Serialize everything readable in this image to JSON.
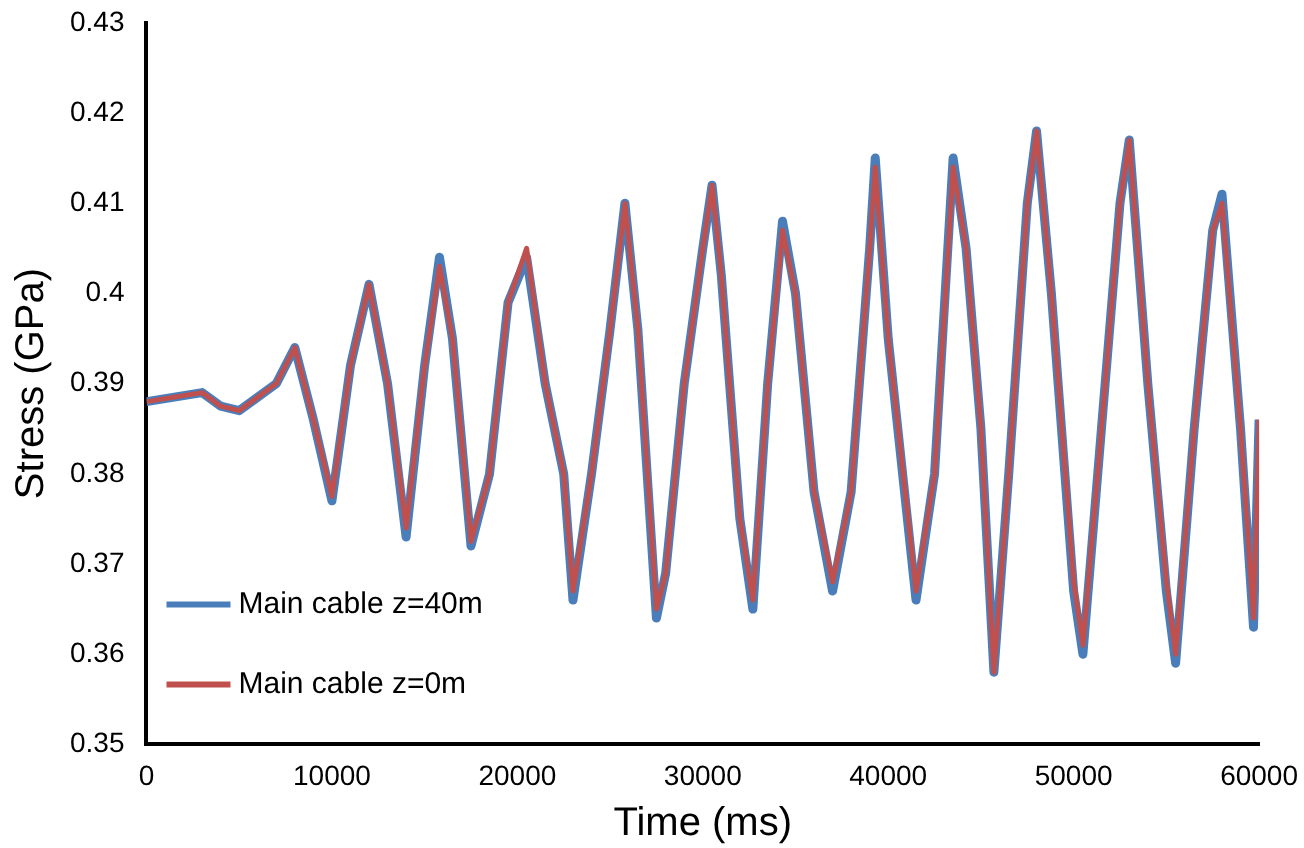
{
  "chart_data": {
    "type": "line",
    "xlabel": "Time (ms)",
    "ylabel": "Stress (GPa)",
    "xlim": [
      0,
      60000
    ],
    "ylim": [
      0.35,
      0.43
    ],
    "xticks": [
      0,
      10000,
      20000,
      30000,
      40000,
      50000,
      60000
    ],
    "yticks": [
      0.35,
      0.36,
      0.37,
      0.38,
      0.39,
      0.4,
      0.41,
      0.42,
      0.43
    ],
    "grid": false,
    "legend": "bottom left",
    "marker": "none",
    "line_style": "solid",
    "x": [
      0,
      3000,
      4000,
      5000,
      7000,
      8000,
      9000,
      10000,
      11000,
      12000,
      13000,
      14000,
      15000,
      15800,
      16500,
      17500,
      18500,
      19500,
      20500,
      21500,
      22500,
      23000,
      24000,
      25000,
      25800,
      26500,
      27500,
      28000,
      29000,
      30000,
      30500,
      31000,
      32000,
      32700,
      33500,
      34300,
      35000,
      36000,
      37000,
      38000,
      39000,
      39300,
      40000,
      41500,
      42500,
      43500,
      44200,
      45000,
      45700,
      46500,
      47500,
      48000,
      48800,
      50000,
      50500,
      51500,
      52500,
      53000,
      54000,
      55000,
      55500,
      56500,
      57500,
      58000,
      59000,
      59700,
      60000
    ],
    "series": [
      {
        "name": "Main cable z=40m",
        "color": "#4a7ebb",
        "values": [
          0.388,
          0.389,
          0.3875,
          0.387,
          0.39,
          0.394,
          0.386,
          0.377,
          0.392,
          0.401,
          0.39,
          0.373,
          0.392,
          0.404,
          0.395,
          0.372,
          0.38,
          0.399,
          0.404,
          0.39,
          0.38,
          0.366,
          0.38,
          0.396,
          0.41,
          0.396,
          0.364,
          0.369,
          0.39,
          0.405,
          0.412,
          0.402,
          0.375,
          0.365,
          0.39,
          0.408,
          0.4,
          0.378,
          0.367,
          0.378,
          0.405,
          0.415,
          0.395,
          0.366,
          0.38,
          0.415,
          0.405,
          0.385,
          0.358,
          0.38,
          0.41,
          0.418,
          0.4,
          0.367,
          0.36,
          0.385,
          0.41,
          0.417,
          0.39,
          0.367,
          0.359,
          0.385,
          0.407,
          0.411,
          0.385,
          0.363,
          0.386
        ]
      },
      {
        "name": "Main cable z=0m",
        "color": "#c0504d",
        "values": [
          0.388,
          0.389,
          0.3875,
          0.387,
          0.39,
          0.394,
          0.386,
          0.3775,
          0.392,
          0.401,
          0.39,
          0.374,
          0.392,
          0.403,
          0.395,
          0.3725,
          0.38,
          0.399,
          0.405,
          0.39,
          0.38,
          0.367,
          0.38,
          0.396,
          0.41,
          0.396,
          0.365,
          0.369,
          0.39,
          0.405,
          0.412,
          0.402,
          0.375,
          0.366,
          0.39,
          0.407,
          0.4,
          0.378,
          0.368,
          0.378,
          0.405,
          0.414,
          0.395,
          0.367,
          0.38,
          0.414,
          0.405,
          0.385,
          0.358,
          0.38,
          0.41,
          0.418,
          0.4,
          0.368,
          0.361,
          0.385,
          0.41,
          0.417,
          0.39,
          0.368,
          0.36,
          0.385,
          0.407,
          0.41,
          0.385,
          0.364,
          0.386
        ]
      }
    ]
  }
}
